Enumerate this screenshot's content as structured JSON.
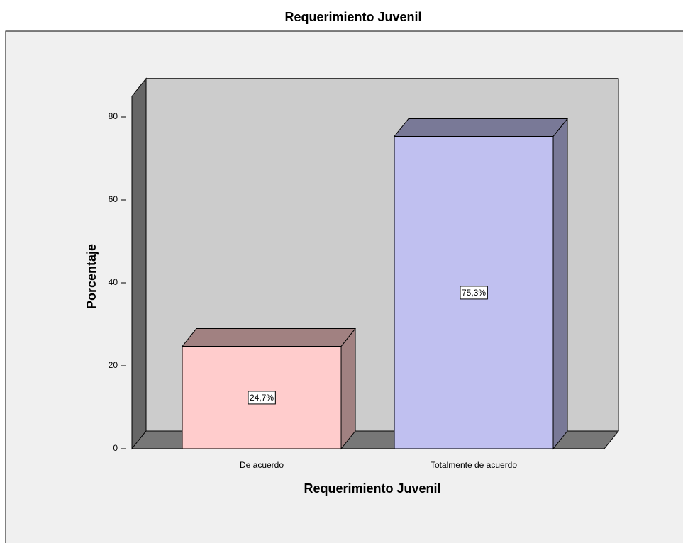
{
  "chart_data": {
    "type": "bar3d",
    "title": "Requerimiento Juvenil",
    "x_label": "Requerimiento Juvenil",
    "y_label": "Porcentaje",
    "categories": [
      "De acuerdo",
      "Totalmente de acuerdo"
    ],
    "values": [
      24.7,
      75.3
    ],
    "value_labels": [
      "24,7%",
      "75,3%"
    ],
    "colors": [
      "#ffcccc",
      "#c0c0f0"
    ],
    "ylim": [
      0,
      85
    ],
    "yticks": [
      0,
      20,
      40,
      60,
      80
    ]
  }
}
